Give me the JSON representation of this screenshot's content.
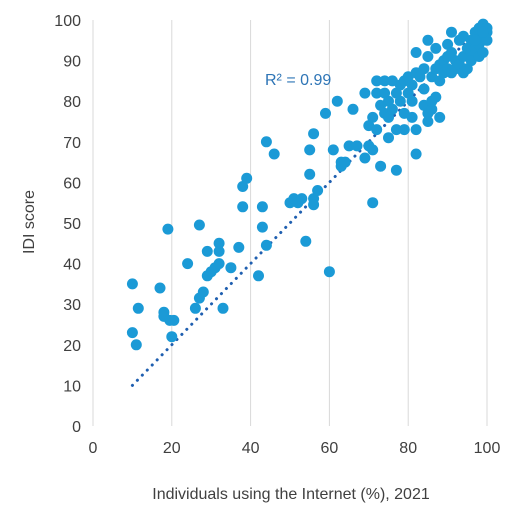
{
  "chart_data": {
    "type": "scatter",
    "xlabel": "Individuals using the Internet (%), 2021",
    "ylabel": "IDI score",
    "xlim": [
      0,
      100
    ],
    "ylim": [
      0,
      100
    ],
    "xticks": [
      0,
      20,
      40,
      60,
      80,
      100
    ],
    "yticks": [
      0,
      10,
      20,
      30,
      40,
      50,
      60,
      70,
      80,
      90,
      100
    ],
    "grid": "vertical",
    "annotation": "R² = 0.99",
    "colors": {
      "points": "#1b9ad6",
      "trendline": "#1f5fb0",
      "annotation": "#2e75b6"
    },
    "trendline": {
      "x": [
        10,
        100
      ],
      "y": [
        10,
        100
      ]
    },
    "points": [
      [
        10,
        35
      ],
      [
        10,
        23
      ],
      [
        11,
        20
      ],
      [
        11.5,
        29
      ],
      [
        17,
        34
      ],
      [
        18,
        28
      ],
      [
        18,
        27
      ],
      [
        19,
        48.5
      ],
      [
        19.5,
        26
      ],
      [
        20,
        22
      ],
      [
        20.5,
        26
      ],
      [
        24,
        40
      ],
      [
        26,
        29
      ],
      [
        27,
        31.5
      ],
      [
        27,
        49.5
      ],
      [
        28,
        33
      ],
      [
        29,
        37
      ],
      [
        29,
        43
      ],
      [
        30,
        38
      ],
      [
        31,
        39
      ],
      [
        32,
        43
      ],
      [
        32,
        45
      ],
      [
        32,
        40
      ],
      [
        33,
        29
      ],
      [
        35,
        39
      ],
      [
        37,
        44
      ],
      [
        38,
        54
      ],
      [
        38,
        59
      ],
      [
        39,
        61
      ],
      [
        42,
        37
      ],
      [
        43,
        49
      ],
      [
        43,
        54
      ],
      [
        44,
        44.5
      ],
      [
        44,
        70
      ],
      [
        46,
        67
      ],
      [
        50,
        55
      ],
      [
        51,
        56
      ],
      [
        52,
        55
      ],
      [
        53,
        56
      ],
      [
        54,
        45.5
      ],
      [
        55,
        62
      ],
      [
        55,
        68
      ],
      [
        56,
        56
      ],
      [
        56,
        72
      ],
      [
        56,
        54.5
      ],
      [
        57,
        58
      ],
      [
        59,
        77
      ],
      [
        60,
        38
      ],
      [
        61,
        68
      ],
      [
        62,
        80
      ],
      [
        63,
        65
      ],
      [
        63,
        64
      ],
      [
        64,
        65
      ],
      [
        65,
        69
      ],
      [
        66,
        78
      ],
      [
        67,
        69
      ],
      [
        69,
        66
      ],
      [
        69,
        82
      ],
      [
        70,
        74
      ],
      [
        70,
        69
      ],
      [
        71,
        55
      ],
      [
        71,
        68
      ],
      [
        71,
        76
      ],
      [
        72,
        85
      ],
      [
        72,
        82
      ],
      [
        72,
        73
      ],
      [
        73,
        64
      ],
      [
        73,
        79
      ],
      [
        74,
        82
      ],
      [
        74,
        77
      ],
      [
        74,
        85
      ],
      [
        75,
        80
      ],
      [
        75,
        71
      ],
      [
        75,
        76
      ],
      [
        76,
        78
      ],
      [
        76,
        85
      ],
      [
        77,
        63
      ],
      [
        77,
        82
      ],
      [
        77,
        73
      ],
      [
        78,
        84
      ],
      [
        78,
        80
      ],
      [
        79,
        77
      ],
      [
        79,
        85
      ],
      [
        79,
        73
      ],
      [
        80,
        82
      ],
      [
        80,
        86
      ],
      [
        81,
        80
      ],
      [
        81,
        76
      ],
      [
        81,
        84
      ],
      [
        82,
        67
      ],
      [
        82,
        73
      ],
      [
        82,
        92
      ],
      [
        82,
        87
      ],
      [
        83,
        86
      ],
      [
        84,
        79
      ],
      [
        84,
        83
      ],
      [
        84,
        88
      ],
      [
        85,
        75
      ],
      [
        85,
        77
      ],
      [
        85,
        91
      ],
      [
        85,
        95
      ],
      [
        86,
        78
      ],
      [
        86,
        80
      ],
      [
        86,
        86
      ],
      [
        87,
        81
      ],
      [
        87,
        88
      ],
      [
        87,
        93
      ],
      [
        88,
        89
      ],
      [
        88,
        85
      ],
      [
        88,
        76
      ],
      [
        89,
        87
      ],
      [
        89,
        90
      ],
      [
        90,
        88
      ],
      [
        90,
        91
      ],
      [
        90,
        94
      ],
      [
        91,
        87
      ],
      [
        91,
        97
      ],
      [
        91,
        92
      ],
      [
        92,
        90
      ],
      [
        92,
        88
      ],
      [
        93,
        95
      ],
      [
        93,
        89
      ],
      [
        94,
        96
      ],
      [
        94,
        87
      ],
      [
        94,
        91
      ],
      [
        95,
        88
      ],
      [
        95,
        93
      ],
      [
        96,
        92
      ],
      [
        96,
        95
      ],
      [
        96,
        90
      ],
      [
        97,
        97
      ],
      [
        97,
        93
      ],
      [
        98,
        98
      ],
      [
        98,
        95
      ],
      [
        98,
        94
      ],
      [
        98,
        91
      ],
      [
        99,
        96
      ],
      [
        99,
        99
      ],
      [
        99,
        92
      ],
      [
        100,
        98
      ],
      [
        100,
        95
      ],
      [
        100,
        97
      ],
      [
        99,
        97
      ],
      [
        97,
        95
      ]
    ]
  }
}
